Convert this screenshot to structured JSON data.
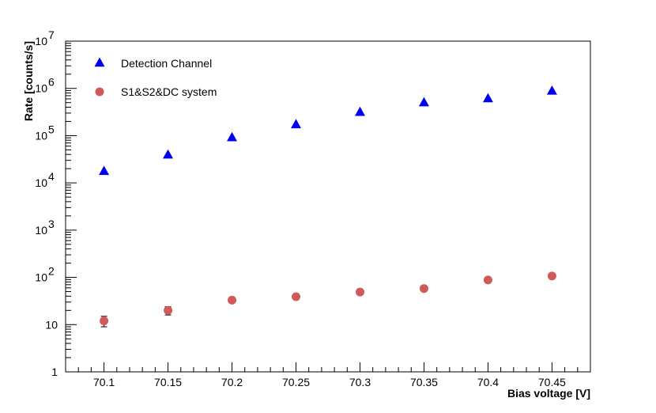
{
  "chart_data": {
    "type": "scatter",
    "title": "",
    "xlabel": "Bias voltage [V]",
    "ylabel": "Rate [counts/s]",
    "xlim": [
      70.07,
      70.48
    ],
    "ylim": [
      1,
      10000000
    ],
    "yscale": "log",
    "grid": false,
    "legend_position": "top-left",
    "x_ticks": [
      {
        "value": 70.1,
        "label": "70.1"
      },
      {
        "value": 70.15,
        "label": "70.15"
      },
      {
        "value": 70.2,
        "label": "70.2"
      },
      {
        "value": 70.25,
        "label": "70.25"
      },
      {
        "value": 70.3,
        "label": "70.3"
      },
      {
        "value": 70.35,
        "label": "70.35"
      },
      {
        "value": 70.4,
        "label": "70.4"
      },
      {
        "value": 70.45,
        "label": "70.45"
      }
    ],
    "y_ticks": [
      {
        "value": 1,
        "base": "1",
        "exp": ""
      },
      {
        "value": 10,
        "base": "10",
        "exp": ""
      },
      {
        "value": 100,
        "base": "10",
        "exp": "2"
      },
      {
        "value": 1000,
        "base": "10",
        "exp": "3"
      },
      {
        "value": 10000,
        "base": "10",
        "exp": "4"
      },
      {
        "value": 100000,
        "base": "10",
        "exp": "5"
      },
      {
        "value": 1000000,
        "base": "10",
        "exp": "6"
      },
      {
        "value": 10000000,
        "base": "10",
        "exp": "7"
      }
    ],
    "series": [
      {
        "name": "Detection Channel",
        "marker": "triangle",
        "color": "#0000ee",
        "points": [
          {
            "x": 70.1,
            "y": 18000
          },
          {
            "x": 70.15,
            "y": 40000
          },
          {
            "x": 70.2,
            "y": 93000
          },
          {
            "x": 70.25,
            "y": 175000
          },
          {
            "x": 70.3,
            "y": 320000
          },
          {
            "x": 70.35,
            "y": 510000
          },
          {
            "x": 70.4,
            "y": 620000
          },
          {
            "x": 70.45,
            "y": 900000
          }
        ]
      },
      {
        "name": "S1&S2&DC system",
        "marker": "circle",
        "color": "#d05a5a",
        "points": [
          {
            "x": 70.1,
            "y": 12,
            "err_low": 9,
            "err_high": 15
          },
          {
            "x": 70.15,
            "y": 20,
            "err_low": 16,
            "err_high": 24
          },
          {
            "x": 70.2,
            "y": 33
          },
          {
            "x": 70.25,
            "y": 39
          },
          {
            "x": 70.3,
            "y": 49
          },
          {
            "x": 70.35,
            "y": 58
          },
          {
            "x": 70.4,
            "y": 88
          },
          {
            "x": 70.45,
            "y": 107
          }
        ]
      }
    ]
  }
}
